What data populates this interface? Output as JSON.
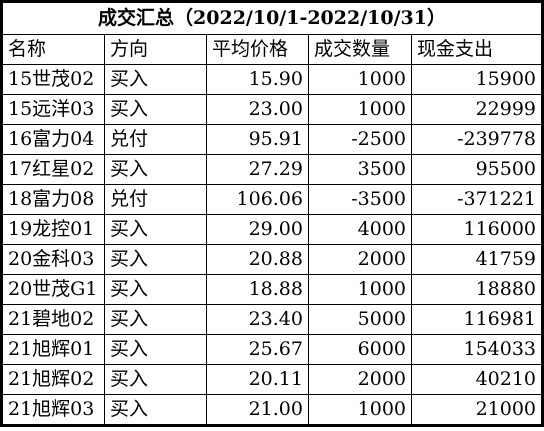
{
  "title": "成交汇总（2022/10/1-2022/10/31）",
  "columns": [
    "名称",
    "方向",
    "平均价格",
    "成交数量",
    "现金支出"
  ],
  "rows": [
    {
      "name": "15世茂02",
      "direction": "买入",
      "avg_price": "15.90",
      "quantity": "1000",
      "cash_out": "15900"
    },
    {
      "name": "15远洋03",
      "direction": "买入",
      "avg_price": "23.00",
      "quantity": "1000",
      "cash_out": "22999"
    },
    {
      "name": "16富力04",
      "direction": "兑付",
      "avg_price": "95.91",
      "quantity": "-2500",
      "cash_out": "-239778"
    },
    {
      "name": "17红星02",
      "direction": "买入",
      "avg_price": "27.29",
      "quantity": "3500",
      "cash_out": "95500"
    },
    {
      "name": "18富力08",
      "direction": "兑付",
      "avg_price": "106.06",
      "quantity": "-3500",
      "cash_out": "-371221"
    },
    {
      "name": "19龙控01",
      "direction": "买入",
      "avg_price": "29.00",
      "quantity": "4000",
      "cash_out": "116000"
    },
    {
      "name": "20金科03",
      "direction": "买入",
      "avg_price": "20.88",
      "quantity": "2000",
      "cash_out": "41759"
    },
    {
      "name": "20世茂G1",
      "direction": "买入",
      "avg_price": "18.88",
      "quantity": "1000",
      "cash_out": "18880"
    },
    {
      "name": "21碧地02",
      "direction": "买入",
      "avg_price": "23.40",
      "quantity": "5000",
      "cash_out": "116981"
    },
    {
      "name": "21旭辉01",
      "direction": "买入",
      "avg_price": "25.67",
      "quantity": "6000",
      "cash_out": "154033"
    },
    {
      "name": "21旭辉02",
      "direction": "买入",
      "avg_price": "20.11",
      "quantity": "2000",
      "cash_out": "40210"
    },
    {
      "name": "21旭辉03",
      "direction": "买入",
      "avg_price": "21.00",
      "quantity": "1000",
      "cash_out": "21000"
    }
  ]
}
